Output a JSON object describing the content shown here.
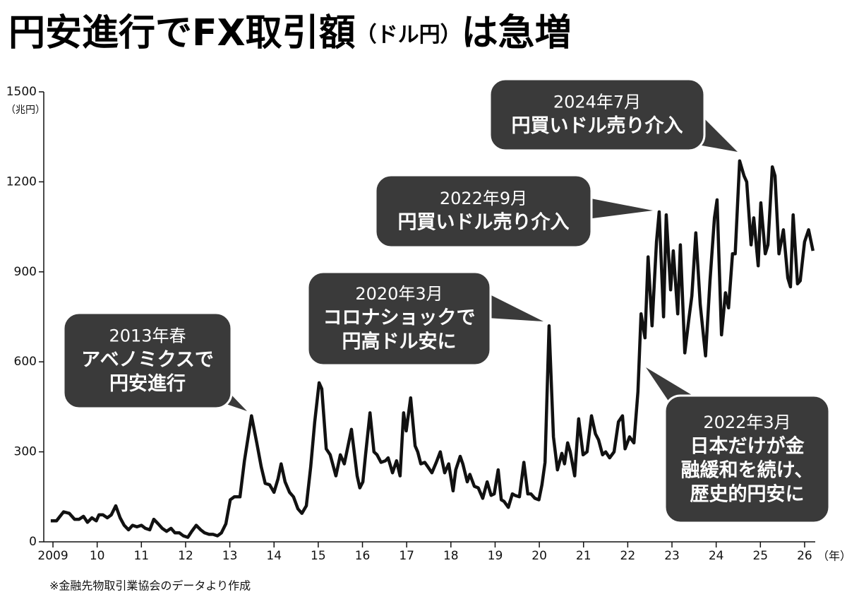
{
  "chart_data": {
    "type": "line",
    "title": [
      "円安進行でFX取引額",
      "（ドル円）",
      "は急増"
    ],
    "y_unit": "（兆円）",
    "x_unit": "（年）",
    "source": "※金融先物取引業協会のデータより作成",
    "xlim": [
      2008.8,
      2026.4
    ],
    "xticks": [
      2009,
      {
        "value": 2010,
        "label": "10"
      },
      {
        "value": 2011,
        "label": "11"
      },
      {
        "value": 2012,
        "label": "12"
      },
      {
        "value": 2013,
        "label": "13"
      },
      {
        "value": 2014,
        "label": "14"
      },
      {
        "value": 2015,
        "label": "15"
      },
      {
        "value": 2016,
        "label": "16"
      },
      {
        "value": 2017,
        "label": "17"
      },
      {
        "value": 2018,
        "label": "18"
      },
      {
        "value": 2019,
        "label": "19"
      },
      {
        "value": 2020,
        "label": "20"
      },
      {
        "value": 2021,
        "label": "21"
      },
      {
        "value": 2022,
        "label": "22"
      },
      {
        "value": 2023,
        "label": "23"
      },
      {
        "value": 2024,
        "label": "24"
      },
      {
        "value": 2025,
        "label": "25"
      },
      {
        "value": 2026,
        "label": "26"
      }
    ],
    "ylim": [
      0,
      1500
    ],
    "yticks": [
      0,
      300,
      600,
      900,
      1200,
      1500
    ],
    "x": [
      2008.95,
      2009.08,
      2009.24,
      2009.37,
      2009.49,
      2009.59,
      2009.69,
      2009.78,
      2009.88,
      2009.98,
      2010.04,
      2010.13,
      2010.23,
      2010.32,
      2010.42,
      2010.52,
      2010.61,
      2010.71,
      2010.8,
      2010.9,
      2011.0,
      2011.09,
      2011.19,
      2011.28,
      2011.38,
      2011.47,
      2011.57,
      2011.67,
      2011.76,
      2011.86,
      2011.95,
      2012.05,
      2012.14,
      2012.24,
      2012.34,
      2012.43,
      2012.53,
      2012.62,
      2012.72,
      2012.81,
      2012.91,
      2013.01,
      2013.1,
      2013.23,
      2013.33,
      2013.49,
      2013.61,
      2013.71,
      2013.8,
      2013.9,
      2014.0,
      2014.09,
      2014.16,
      2014.25,
      2014.35,
      2014.44,
      2014.54,
      2014.63,
      2014.73,
      2014.83,
      2014.92,
      2015.02,
      2015.08,
      2015.18,
      2015.27,
      2015.4,
      2015.5,
      2015.59,
      2015.66,
      2015.75,
      2015.88,
      2015.94,
      2016.01,
      2016.07,
      2016.17,
      2016.26,
      2016.33,
      2016.42,
      2016.52,
      2016.58,
      2016.68,
      2016.77,
      2016.85,
      2016.93,
      2016.99,
      2017.09,
      2017.19,
      2017.25,
      2017.32,
      2017.41,
      2017.48,
      2017.57,
      2017.67,
      2017.76,
      2017.86,
      2017.95,
      2018.05,
      2018.11,
      2018.21,
      2018.27,
      2018.37,
      2018.43,
      2018.53,
      2018.62,
      2018.72,
      2018.82,
      2018.91,
      2018.98,
      2019.07,
      2019.14,
      2019.2,
      2019.3,
      2019.39,
      2019.45,
      2019.55,
      2019.65,
      2019.74,
      2019.81,
      2019.9,
      2019.99,
      2020.06,
      2020.13,
      2020.22,
      2020.32,
      2020.41,
      2020.51,
      2020.57,
      2020.64,
      2020.7,
      2020.8,
      2020.89,
      2020.99,
      2021.08,
      2021.18,
      2021.27,
      2021.34,
      2021.43,
      2021.5,
      2021.59,
      2021.69,
      2021.79,
      2021.88,
      2021.94,
      2022.04,
      2022.14,
      2022.23,
      2022.3,
      2022.39,
      2022.46,
      2022.55,
      2022.65,
      2022.71,
      2022.81,
      2022.87,
      2022.97,
      2023.03,
      2023.13,
      2023.19,
      2023.29,
      2023.38,
      2023.45,
      2023.54,
      2023.64,
      2023.76,
      2023.86,
      2023.96,
      2024.02,
      2024.12,
      2024.21,
      2024.28,
      2024.37,
      2024.43,
      2024.53,
      2024.63,
      2024.69,
      2024.79,
      2024.85,
      2024.95,
      2025.01,
      2025.11,
      2025.17,
      2025.27,
      2025.33,
      2025.42,
      2025.52,
      2025.62,
      2025.68,
      2025.74,
      2025.84,
      2025.9,
      2026.0,
      2026.09,
      2026.19
    ],
    "series": [
      {
        "color": "#111111",
        "values": [
          70,
          70,
          100,
          95,
          75,
          75,
          85,
          65,
          80,
          70,
          90,
          90,
          80,
          90,
          120,
          80,
          55,
          40,
          55,
          50,
          55,
          45,
          40,
          75,
          60,
          45,
          35,
          45,
          30,
          30,
          20,
          15,
          35,
          55,
          40,
          30,
          25,
          25,
          20,
          30,
          60,
          140,
          150,
          150,
          270,
          420,
          330,
          250,
          195,
          190,
          165,
          210,
          260,
          200,
          165,
          150,
          110,
          95,
          120,
          250,
          400,
          530,
          510,
          310,
          290,
          220,
          290,
          260,
          310,
          375,
          220,
          180,
          200,
          290,
          430,
          300,
          290,
          265,
          270,
          280,
          230,
          270,
          220,
          430,
          370,
          480,
          320,
          300,
          260,
          265,
          250,
          230,
          265,
          300,
          230,
          260,
          170,
          240,
          285,
          260,
          200,
          225,
          185,
          180,
          145,
          200,
          155,
          160,
          240,
          140,
          135,
          115,
          160,
          155,
          150,
          265,
          160,
          160,
          145,
          140,
          190,
          265,
          720,
          350,
          240,
          295,
          260,
          330,
          300,
          220,
          410,
          290,
          300,
          420,
          360,
          340,
          290,
          300,
          280,
          300,
          400,
          420,
          310,
          350,
          330,
          500,
          760,
          680,
          950,
          720,
          1000,
          1100,
          750,
          1090,
          840,
          970,
          760,
          990,
          630,
          740,
          820,
          1030,
          790,
          620,
          870,
          1080,
          1140,
          690,
          830,
          780,
          960,
          960,
          1270,
          1220,
          1200,
          990,
          1080,
          920,
          1130,
          960,
          990,
          1250,
          1220,
          960,
          1040,
          880,
          850,
          1090,
          860,
          870,
          1000,
          1040,
          970
        ]
      }
    ],
    "annotations": [
      {
        "lines": [
          "2013年春",
          "アベノミクスで",
          "円安進行"
        ]
      },
      {
        "lines": [
          "2020年3月",
          "コロナショックで",
          "円高ドル安に"
        ]
      },
      {
        "lines": [
          "2022年9月",
          "円買いドル売り介入"
        ]
      },
      {
        "lines": [
          "2024年7月",
          "円買いドル売り介入"
        ]
      },
      {
        "lines": [
          "2022年3月",
          "日本だけが金",
          "融緩和を続け、",
          "歴史的円安に"
        ]
      }
    ]
  }
}
